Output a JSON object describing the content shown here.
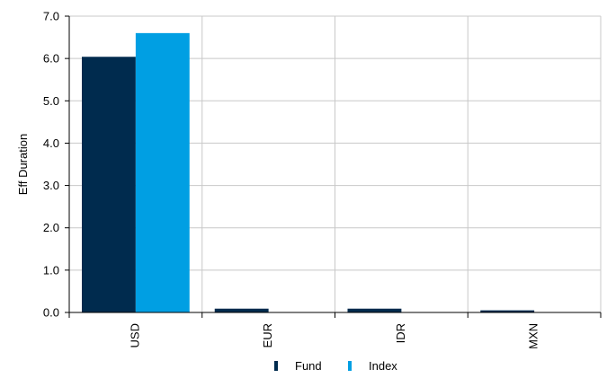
{
  "chart_data": {
    "type": "bar",
    "title": "",
    "xlabel": "",
    "ylabel": "Eff Duration",
    "categories": [
      "USD",
      "EUR",
      "IDR",
      "MXN"
    ],
    "series": [
      {
        "name": "Fund",
        "color": "#002B4E",
        "values": [
          6.04,
          0.09,
          0.09,
          0.05
        ]
      },
      {
        "name": "Index",
        "color": "#009FE3",
        "values": [
          6.6,
          0.0,
          0.0,
          0.0
        ]
      }
    ],
    "ylim": [
      0,
      7
    ],
    "yticks": [
      0,
      1,
      2,
      3,
      4,
      5,
      6,
      7
    ],
    "ytick_labels": [
      "0.0",
      "1.0",
      "2.0",
      "3.0",
      "4.0",
      "5.0",
      "6.0",
      "7.0"
    ],
    "grid": true,
    "legend": "bottom-center",
    "colors": {
      "grid": "#C8C8C8",
      "axis": "#000000"
    }
  }
}
